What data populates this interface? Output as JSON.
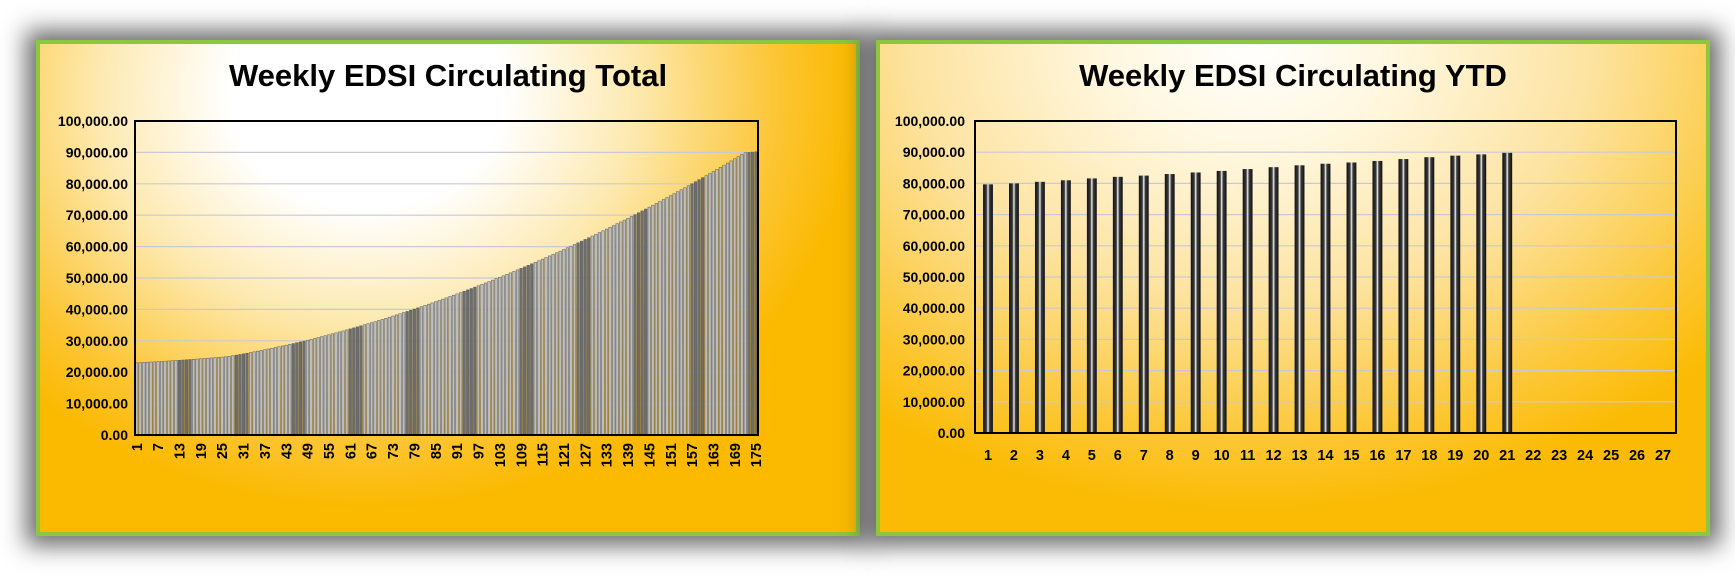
{
  "charts": [
    {
      "id": "total",
      "title": "Weekly EDSI Circulating Total",
      "chart_data": {
        "type": "bar",
        "title": "Weekly EDSI Circulating Total",
        "xlabel": "",
        "ylabel": "",
        "ylim": [
          0,
          100000
        ],
        "y_ticks": [
          "0.00",
          "10,000.00",
          "20,000.00",
          "30,000.00",
          "40,000.00",
          "50,000.00",
          "60,000.00",
          "70,000.00",
          "80,000.00",
          "90,000.00",
          "100,000.00"
        ],
        "x_tick_labels": [
          "1",
          "7",
          "13",
          "19",
          "25",
          "31",
          "37",
          "43",
          "49",
          "55",
          "61",
          "67",
          "73",
          "79",
          "85",
          "91",
          "97",
          "103",
          "109",
          "115",
          "121",
          "127",
          "133",
          "139",
          "145",
          "151",
          "157",
          "163",
          "169",
          "175"
        ],
        "categories_count": 175,
        "grid": true,
        "legend": "none",
        "values": [
          23000,
          23060,
          23120,
          23180,
          23240,
          23300,
          23370,
          23440,
          23510,
          23580,
          23650,
          23720,
          23800,
          23880,
          23960,
          24040,
          24120,
          24200,
          24280,
          24360,
          24450,
          24540,
          24630,
          24720,
          24810,
          24900,
          25060,
          25240,
          25440,
          25640,
          25840,
          26040,
          26260,
          26480,
          26700,
          26930,
          27160,
          27390,
          27630,
          27870,
          28110,
          28360,
          28610,
          28860,
          29120,
          29380,
          29640,
          29910,
          30180,
          30450,
          30740,
          31030,
          31320,
          31620,
          31920,
          32220,
          32530,
          32840,
          33150,
          33470,
          33790,
          34110,
          34440,
          34770,
          35100,
          35440,
          35780,
          36120,
          36470,
          36820,
          37170,
          37530,
          37890,
          38250,
          38620,
          38990,
          39360,
          39740,
          40120,
          40500,
          40890,
          41280,
          41670,
          42070,
          42470,
          42870,
          43280,
          43690,
          44100,
          44520,
          44940,
          45360,
          45790,
          46220,
          46650,
          47090,
          47530,
          47970,
          48420,
          48870,
          49320,
          49780,
          50240,
          50700,
          51170,
          51640,
          52110,
          52590,
          53070,
          53550,
          54040,
          54530,
          55020,
          55520,
          56020,
          56520,
          57030,
          57540,
          58050,
          58570,
          59090,
          59610,
          60140,
          60670,
          61200,
          61740,
          62280,
          62820,
          63370,
          63920,
          64470,
          65030,
          65590,
          66150,
          66720,
          67290,
          67860,
          68440,
          69020,
          69600,
          70190,
          70780,
          71370,
          71970,
          72570,
          73170,
          73780,
          74390,
          75000,
          75620,
          76240,
          76860,
          77490,
          78120,
          78750,
          79390,
          80030,
          80670,
          81320,
          81970,
          82620,
          83280,
          83940,
          84600,
          85270,
          85940,
          86610,
          87290,
          87970,
          88650,
          89340,
          89900,
          90000,
          90100,
          90200
        ]
      }
    },
    {
      "id": "ytd",
      "title": "Weekly EDSI Circulating YTD",
      "chart_data": {
        "type": "bar",
        "title": "Weekly EDSI Circulating YTD",
        "xlabel": "",
        "ylabel": "",
        "ylim": [
          0,
          100000
        ],
        "y_ticks": [
          "0.00",
          "10,000.00",
          "20,000.00",
          "30,000.00",
          "40,000.00",
          "50,000.00",
          "60,000.00",
          "70,000.00",
          "80,000.00",
          "90,000.00",
          "100,000.00"
        ],
        "categories": [
          "1",
          "2",
          "3",
          "4",
          "5",
          "6",
          "7",
          "8",
          "9",
          "10",
          "11",
          "12",
          "13",
          "14",
          "15",
          "16",
          "17",
          "18",
          "19",
          "20",
          "21",
          "22",
          "23",
          "24",
          "25",
          "26",
          "27"
        ],
        "values": [
          79700,
          80000,
          80500,
          81000,
          81600,
          82100,
          82500,
          83000,
          83500,
          84000,
          84600,
          85200,
          85800,
          86300,
          86700,
          87200,
          87800,
          88400,
          88900,
          89300,
          89800,
          null,
          null,
          null,
          null,
          null,
          null
        ],
        "grid": true,
        "legend": "none"
      }
    }
  ],
  "colors": {
    "panel_border": "#8dc63f",
    "bar_dark": "#111111",
    "bar_light": "#f2f2f2",
    "grid": "#c9c9d6",
    "plot_border": "#000000"
  }
}
